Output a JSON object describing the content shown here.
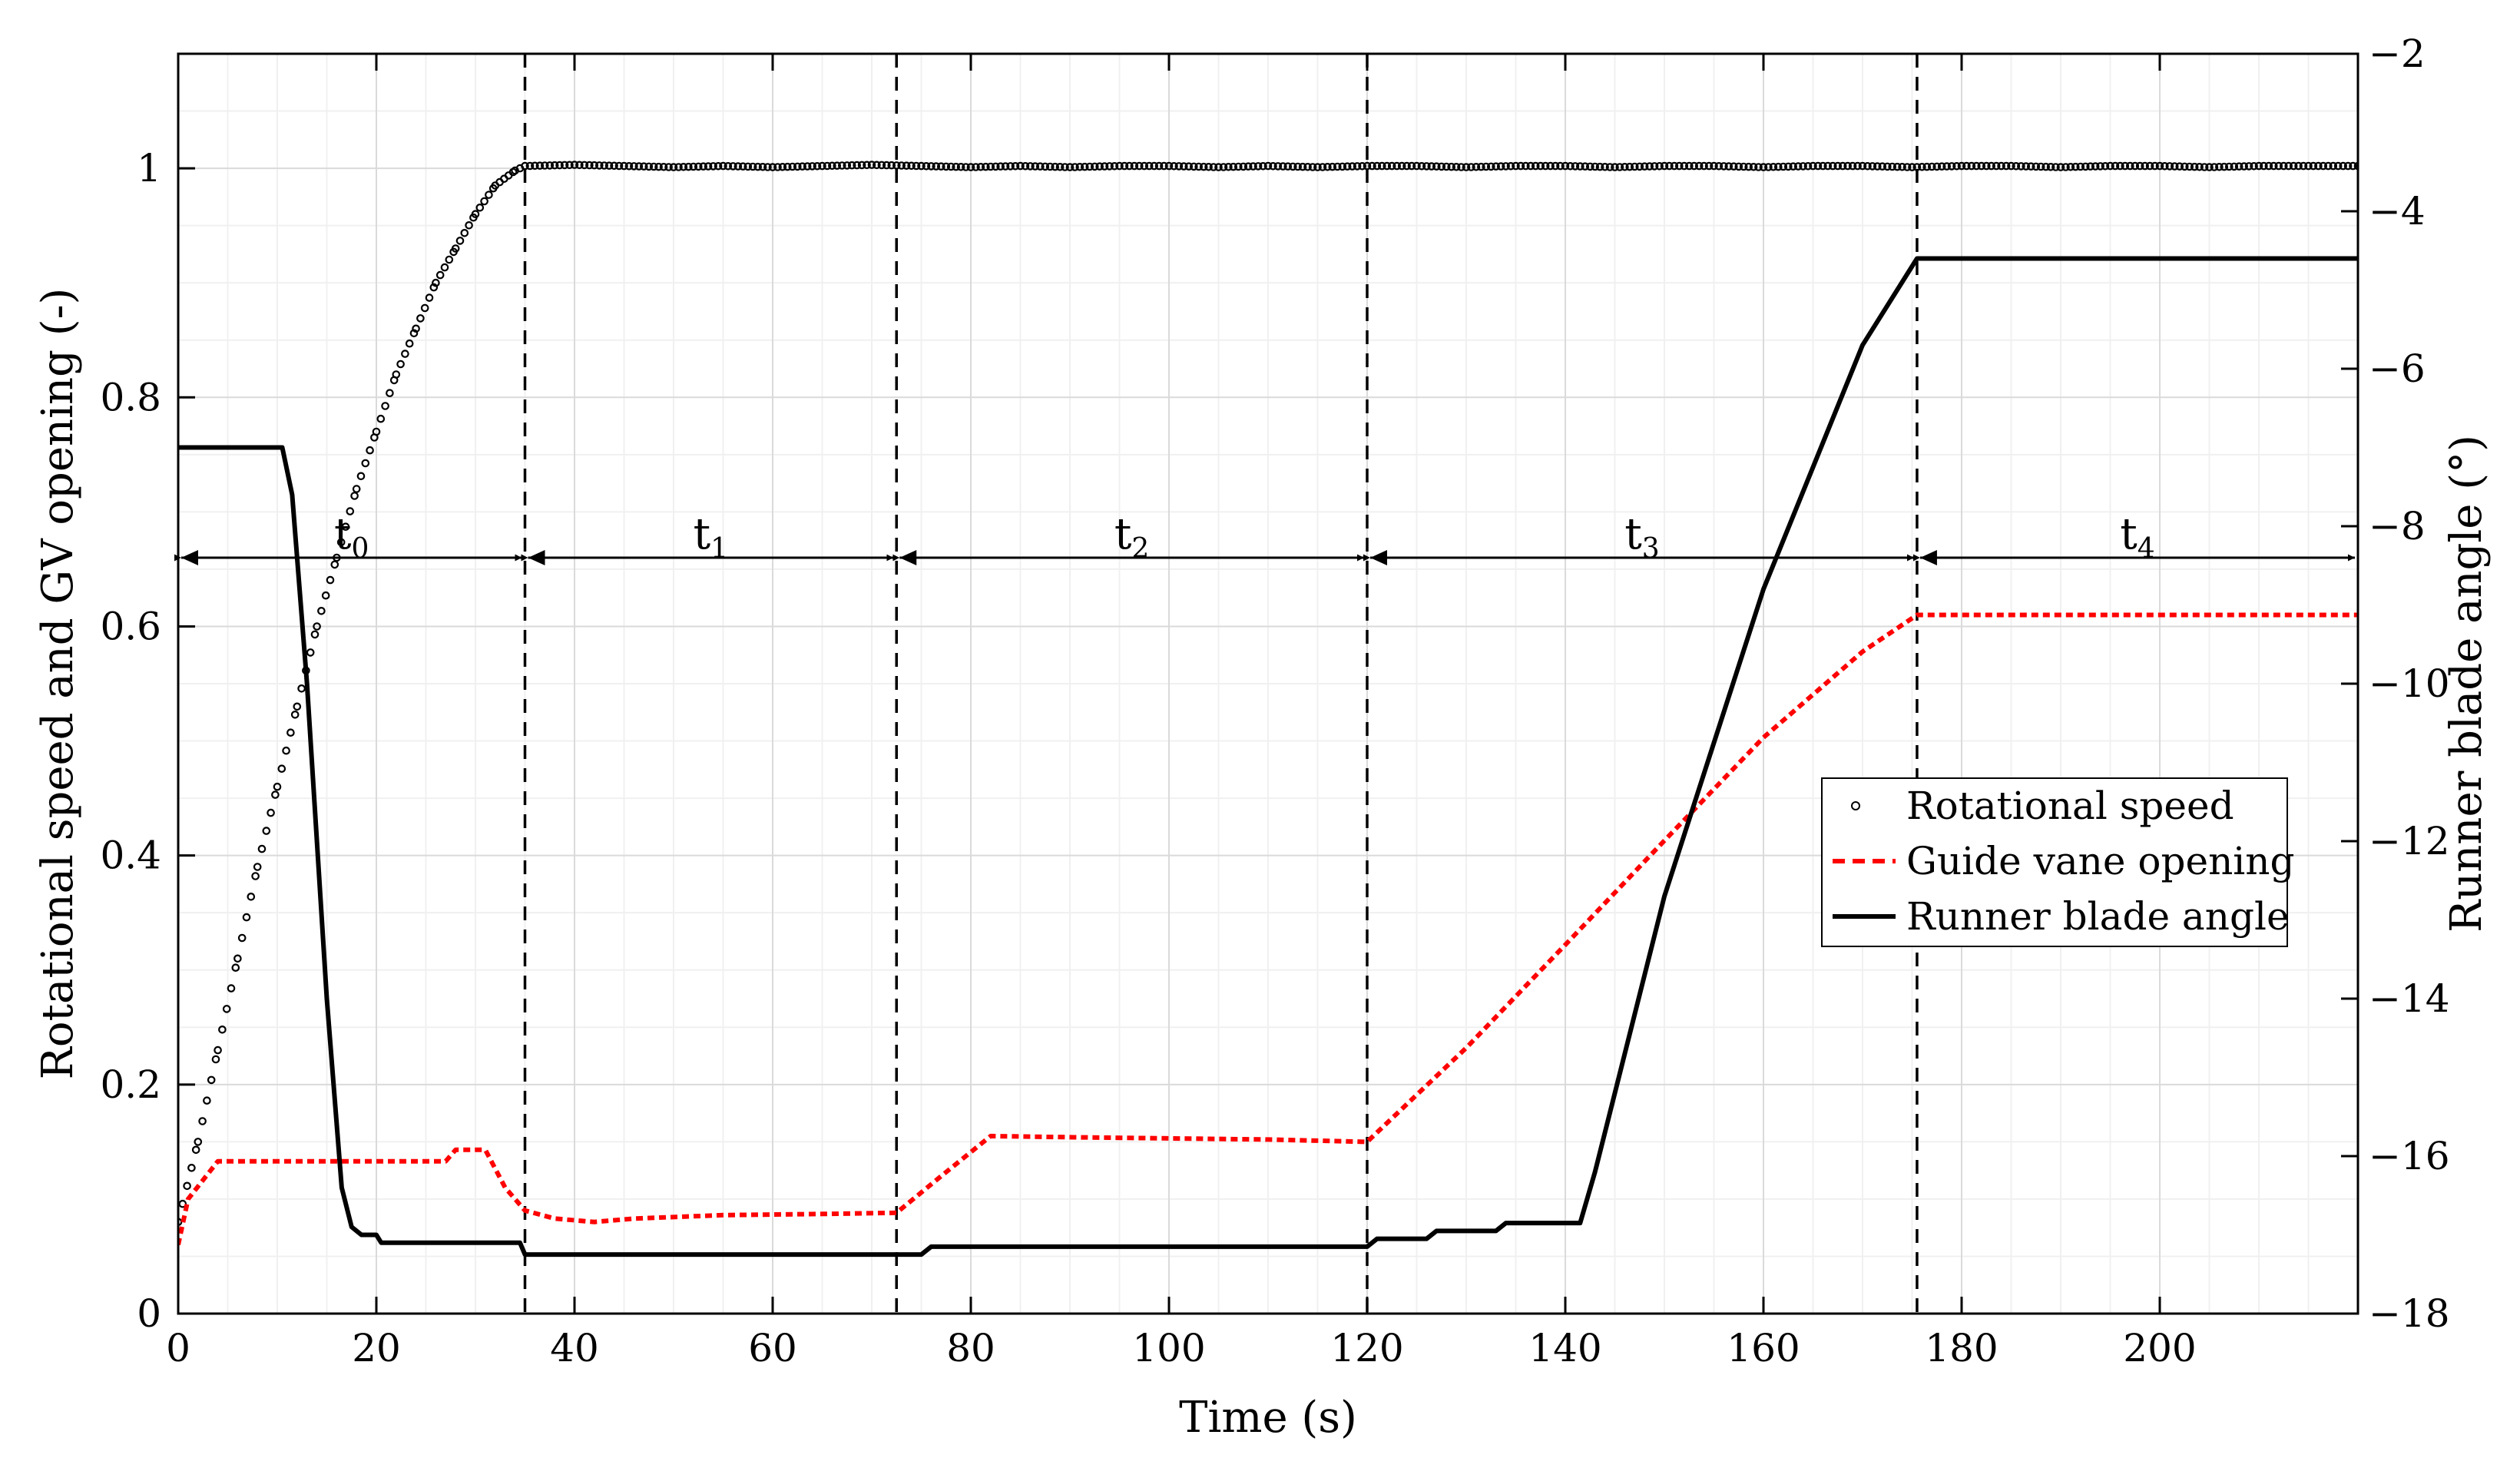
{
  "chart_data": {
    "type": "line",
    "xlabel": "Time (s)",
    "ylabel_left": "Rotational speed and GV opening (-)",
    "ylabel_right": "Runner blade angle (°)",
    "xlim": [
      0,
      220
    ],
    "ylim_left": [
      0,
      1.1
    ],
    "ylim_right": [
      -18,
      -2
    ],
    "xticks": [
      0,
      20,
      40,
      60,
      80,
      100,
      120,
      140,
      160,
      180,
      200
    ],
    "yticks_left": [
      0,
      0.2,
      0.4,
      0.6,
      0.8,
      1
    ],
    "yticks_right": [
      -18,
      -16,
      -14,
      -12,
      -10,
      -8,
      -6,
      -4,
      -2
    ],
    "grid": true,
    "legend_position": "center-right",
    "phase_boundaries": [
      0,
      35,
      72.5,
      120,
      175.5,
      220
    ],
    "phase_arrow_level": 0.66,
    "phases": [
      {
        "base": "t",
        "sub": "0"
      },
      {
        "base": "t",
        "sub": "1"
      },
      {
        "base": "t",
        "sub": "2"
      },
      {
        "base": "t",
        "sub": "3"
      },
      {
        "base": "t",
        "sub": "4"
      }
    ],
    "series": [
      {
        "name": "Rotational speed",
        "axis": "left",
        "style": "dots",
        "color": "#000000",
        "x": [
          0,
          2,
          4,
          6,
          8,
          10,
          12,
          14,
          16,
          18,
          20,
          22,
          24,
          26,
          28,
          30,
          32,
          34,
          35,
          40,
          45,
          50,
          55,
          60,
          65,
          70,
          75,
          80,
          85,
          90,
          95,
          100,
          105,
          110,
          115,
          120,
          125,
          130,
          135,
          140,
          145,
          150,
          155,
          160,
          165,
          170,
          175,
          180,
          185,
          190,
          195,
          200,
          205,
          210,
          215,
          220
        ],
        "y": [
          0.08,
          0.15,
          0.23,
          0.31,
          0.39,
          0.46,
          0.53,
          0.6,
          0.66,
          0.72,
          0.77,
          0.82,
          0.86,
          0.9,
          0.93,
          0.96,
          0.985,
          0.998,
          1.002,
          1.003,
          1.002,
          1.001,
          1.002,
          1.001,
          1.002,
          1.003,
          1.002,
          1.001,
          1.002,
          1.001,
          1.002,
          1.002,
          1.001,
          1.002,
          1.001,
          1.002,
          1.002,
          1.001,
          1.002,
          1.002,
          1.001,
          1.002,
          1.002,
          1.001,
          1.002,
          1.002,
          1.001,
          1.002,
          1.002,
          1.001,
          1.002,
          1.002,
          1.001,
          1.002,
          1.002,
          1.002
        ]
      },
      {
        "name": "Guide vane opening",
        "axis": "left",
        "style": "dashed",
        "color": "#ff0000",
        "x": [
          0,
          1,
          4,
          10,
          20,
          27,
          28,
          31,
          33,
          35,
          38,
          42,
          46,
          55,
          65,
          72.5,
          77,
          82,
          90,
          100,
          110,
          120,
          130,
          140,
          150,
          160,
          170,
          175.5,
          180,
          200,
          220
        ],
        "y": [
          0.06,
          0.1,
          0.133,
          0.133,
          0.133,
          0.133,
          0.143,
          0.143,
          0.11,
          0.09,
          0.083,
          0.08,
          0.083,
          0.086,
          0.087,
          0.088,
          0.12,
          0.155,
          0.154,
          0.153,
          0.152,
          0.15,
          0.232,
          0.322,
          0.413,
          0.503,
          0.578,
          0.61,
          0.61,
          0.61,
          0.61
        ]
      },
      {
        "name": "Runner blade angle",
        "axis": "right",
        "style": "solid",
        "color": "#000000",
        "x": [
          0,
          10.5,
          11.5,
          13,
          15,
          16.5,
          17.5,
          18.5,
          20,
          20.5,
          34.5,
          35,
          72.5,
          73,
          75,
          76,
          119,
          120,
          121,
          126,
          127,
          133,
          134,
          141.5,
          143,
          150,
          160,
          170,
          175.5,
          176,
          220
        ],
        "y": [
          -7,
          -7,
          -7.6,
          -10,
          -14,
          -16.4,
          -16.9,
          -17,
          -17,
          -17.1,
          -17.1,
          -17.25,
          -17.25,
          -17.25,
          -17.25,
          -17.15,
          -17.15,
          -17.15,
          -17.05,
          -17.05,
          -16.95,
          -16.95,
          -16.85,
          -16.85,
          -16.2,
          -12.7,
          -8.8,
          -5.7,
          -4.6,
          -4.6,
          -4.6
        ]
      }
    ]
  }
}
